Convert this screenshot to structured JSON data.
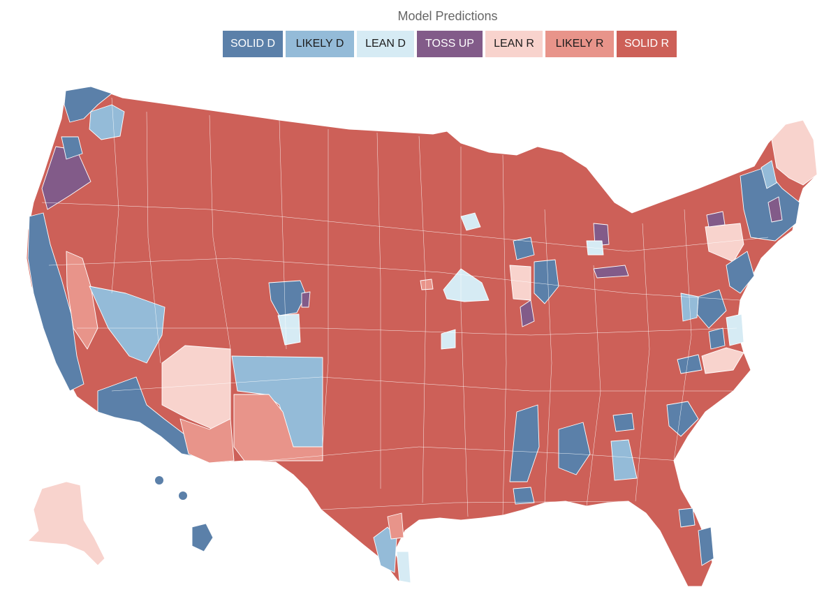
{
  "title": "Model Predictions",
  "legend": [
    {
      "key": "solid_d",
      "label": "SOLID D",
      "color": "#5b80a9",
      "text_color": "#ffffff"
    },
    {
      "key": "likely_d",
      "label": "LIKELY D",
      "color": "#94bbd8",
      "text_color": "#1c1c1c"
    },
    {
      "key": "lean_d",
      "label": "LEAN D",
      "color": "#d6ebf4",
      "text_color": "#1c1c1c"
    },
    {
      "key": "toss_up",
      "label": "TOSS UP",
      "color": "#825b89",
      "text_color": "#ffffff"
    },
    {
      "key": "lean_r",
      "label": "LEAN R",
      "color": "#f8d3cd",
      "text_color": "#1c1c1c"
    },
    {
      "key": "likely_r",
      "label": "LIKELY R",
      "color": "#e8948a",
      "text_color": "#1c1c1c"
    },
    {
      "key": "solid_r",
      "label": "SOLID R",
      "color": "#cd6058",
      "text_color": "#ffffff"
    }
  ],
  "map": {
    "regions": [
      {
        "name": "washington-west",
        "rating": "solid_d"
      },
      {
        "name": "washington-east",
        "rating": "likely_d"
      },
      {
        "name": "oregon-coast",
        "rating": "toss_up"
      },
      {
        "name": "california-coast",
        "rating": "solid_d"
      },
      {
        "name": "california-central",
        "rating": "likely_r"
      },
      {
        "name": "california-south",
        "rating": "solid_d"
      },
      {
        "name": "nevada-south",
        "rating": "likely_d"
      },
      {
        "name": "utah-salt-lake",
        "rating": "solid_d"
      },
      {
        "name": "utah-central",
        "rating": "lean_d"
      },
      {
        "name": "arizona-north",
        "rating": "lean_r"
      },
      {
        "name": "arizona-south",
        "rating": "solid_d"
      },
      {
        "name": "new-mexico-north",
        "rating": "likely_d"
      },
      {
        "name": "new-mexico-south",
        "rating": "likely_r"
      },
      {
        "name": "kansas-east",
        "rating": "lean_d"
      },
      {
        "name": "minnesota-metro",
        "rating": "lean_d"
      },
      {
        "name": "illinois-chicago",
        "rating": "solid_d"
      },
      {
        "name": "michigan-east",
        "rating": "toss_up"
      },
      {
        "name": "mississippi-delta",
        "rating": "solid_d"
      },
      {
        "name": "georgia-atlanta",
        "rating": "solid_d"
      },
      {
        "name": "georgia-southwest",
        "rating": "likely_d"
      },
      {
        "name": "virginia-north",
        "rating": "solid_d"
      },
      {
        "name": "north-carolina-triangle",
        "rating": "lean_r"
      },
      {
        "name": "pennsylvania-east",
        "rating": "lean_r"
      },
      {
        "name": "new-england-interior",
        "rating": "solid_d"
      },
      {
        "name": "maine-north",
        "rating": "lean_r"
      },
      {
        "name": "texas-south",
        "rating": "likely_d"
      },
      {
        "name": "florida-south",
        "rating": "solid_d"
      },
      {
        "name": "alaska",
        "rating": "lean_r"
      },
      {
        "name": "hawaii",
        "rating": "solid_d"
      }
    ]
  }
}
